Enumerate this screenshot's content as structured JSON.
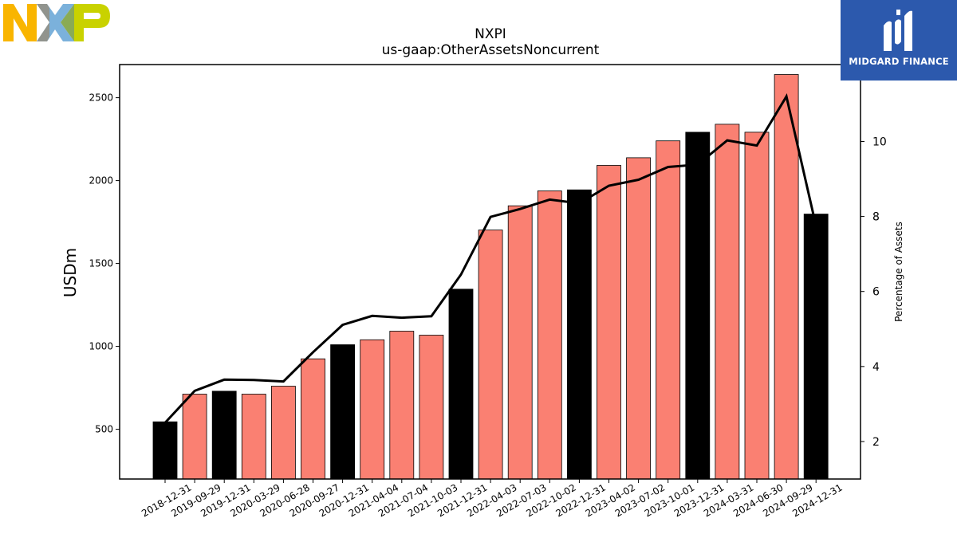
{
  "logos": {
    "company_logo": "NXP",
    "brand_name": "MIDGARD FINANCE"
  },
  "chart_data": {
    "type": "bar",
    "title": "NXPI",
    "subtitle": "us-gaap:OtherAssetsNoncurrent",
    "ylabel": "USDm",
    "y2label": "Percentage of Assets",
    "categories": [
      "2018-12-31",
      "2019-09-29",
      "2019-12-31",
      "2020-03-29",
      "2020-06-28",
      "2020-09-27",
      "2020-12-31",
      "2021-04-04",
      "2021-07-04",
      "2021-10-03",
      "2021-12-31",
      "2022-04-03",
      "2022-07-03",
      "2022-10-02",
      "2022-12-31",
      "2023-04-02",
      "2023-07-02",
      "2023-10-01",
      "2023-12-31",
      "2024-03-31",
      "2024-06-30",
      "2024-09-29",
      "2024-12-31"
    ],
    "series": [
      {
        "type": "bar",
        "axis": "left",
        "values": [
          545,
          712,
          730,
          712,
          760,
          925,
          1010,
          1040,
          1092,
          1068,
          1345,
          1702,
          1848,
          1938,
          1944,
          2092,
          2138,
          2240,
          2292,
          2340,
          2292,
          2640,
          1798
        ],
        "colors": [
          "#000000",
          "#fa8072",
          "#000000",
          "#fa8072",
          "#fa8072",
          "#fa8072",
          "#000000",
          "#fa8072",
          "#fa8072",
          "#fa8072",
          "#000000",
          "#fa8072",
          "#fa8072",
          "#fa8072",
          "#000000",
          "#fa8072",
          "#fa8072",
          "#fa8072",
          "#000000",
          "#fa8072",
          "#fa8072",
          "#fa8072",
          "#000000"
        ]
      },
      {
        "type": "line",
        "axis": "right",
        "color": "#000000",
        "values": [
          2.5,
          3.35,
          3.65,
          3.64,
          3.6,
          4.38,
          5.11,
          5.35,
          5.3,
          5.34,
          6.45,
          7.99,
          8.2,
          8.45,
          8.35,
          8.82,
          8.98,
          9.32,
          9.38,
          10.03,
          9.89,
          11.2,
          7.75
        ]
      }
    ],
    "ylim": [
      200,
      2700
    ],
    "y2lim": [
      1.0,
      12.05
    ],
    "yticks": [
      500,
      1000,
      1500,
      2000,
      2500
    ],
    "y2ticks": [
      2,
      4,
      6,
      8,
      10
    ],
    "grid": false,
    "legend": "none"
  }
}
